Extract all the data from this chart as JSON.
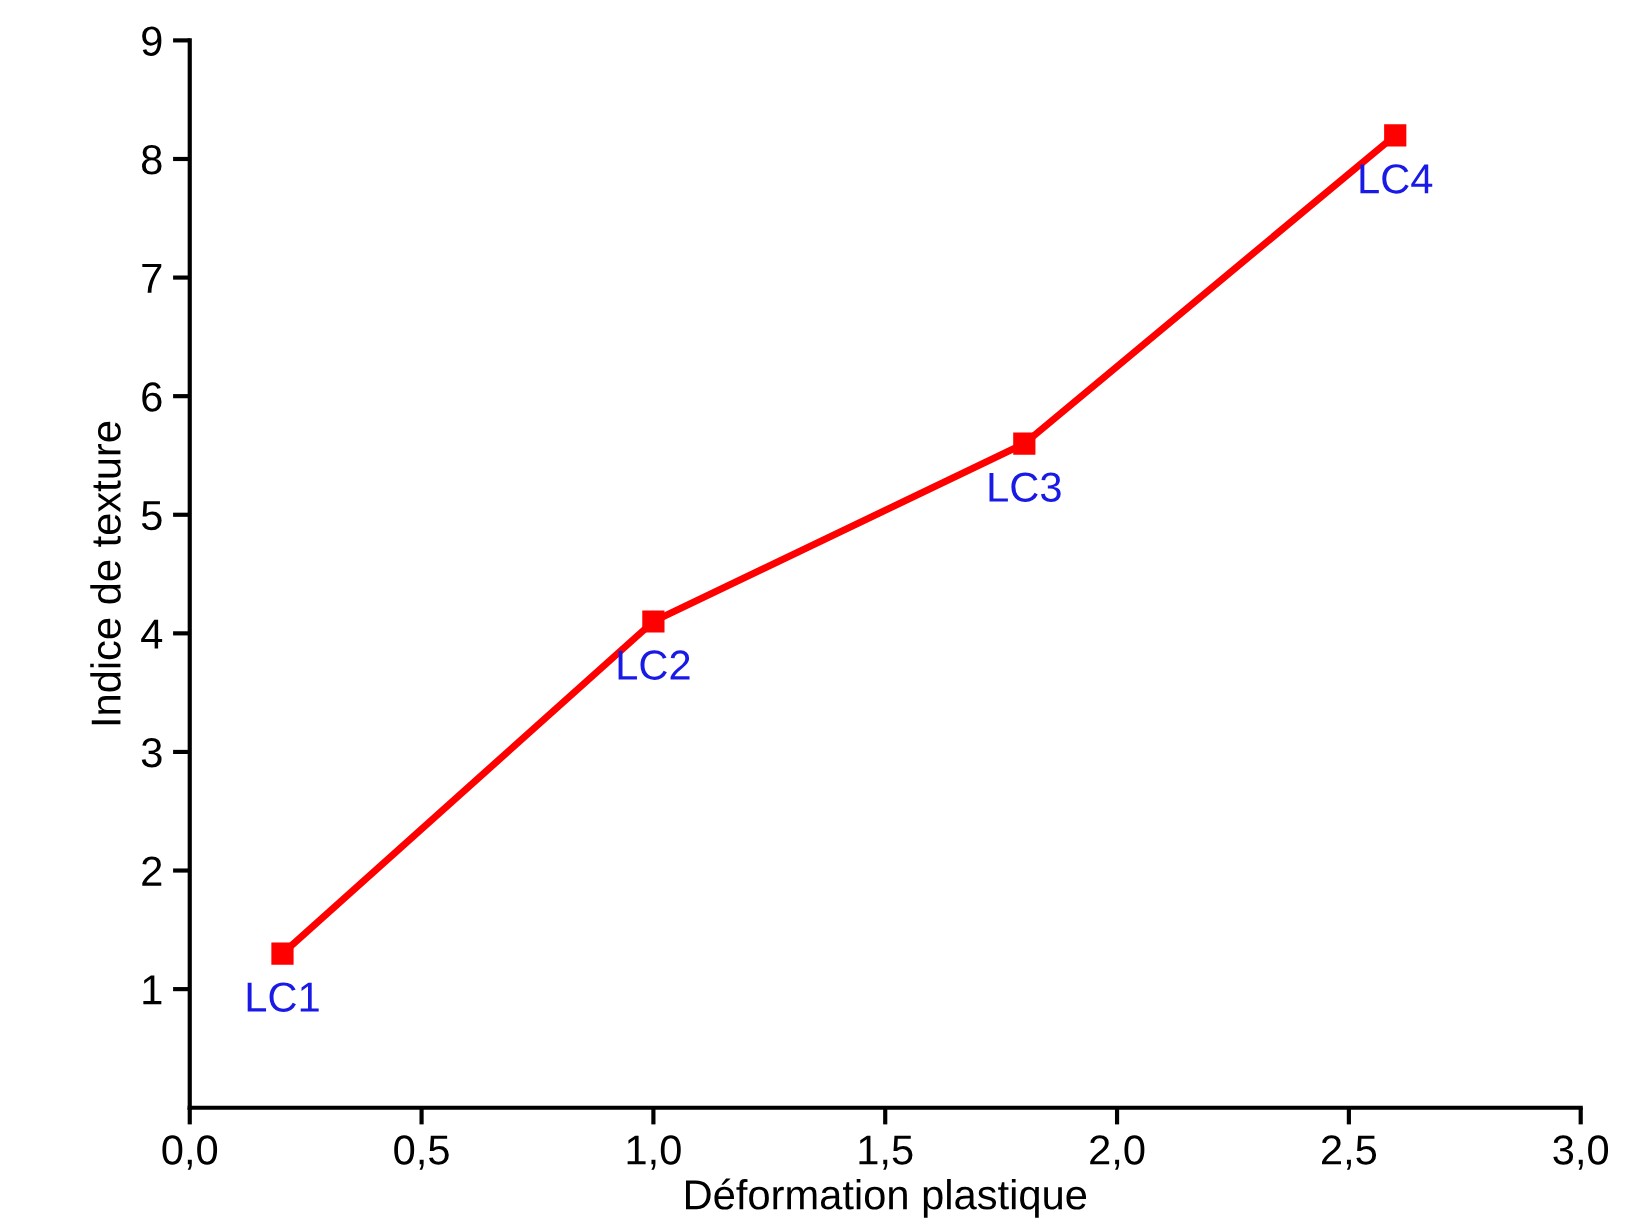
{
  "chart_data": {
    "type": "line",
    "xlabel": "Déformation plastique",
    "ylabel": "Indice de texture",
    "x": [
      0.2,
      1.0,
      1.8,
      2.6
    ],
    "series": [
      {
        "color": "#ff0000",
        "values": [
          1.3,
          4.1,
          5.6,
          8.2
        ]
      }
    ],
    "marker": "square",
    "line_style": "solid",
    "xlim": [
      0,
      3
    ],
    "ylim": [
      0,
      9
    ],
    "xticks": [
      {
        "value": 0,
        "label": "0,0"
      },
      {
        "value": 0.5,
        "label": "0,5"
      },
      {
        "value": 1,
        "label": "1,0"
      },
      {
        "value": 1.5,
        "label": "1,5"
      },
      {
        "value": 2,
        "label": "2,0"
      },
      {
        "value": 2.5,
        "label": "2,5"
      },
      {
        "value": 3,
        "label": "3,0"
      }
    ],
    "yticks": [
      1,
      2,
      3,
      4,
      5,
      6,
      7,
      8,
      9
    ],
    "annotations": [
      {
        "text": "LC1",
        "x": 0.2,
        "y": 1.3
      },
      {
        "text": "LC2",
        "x": 1.0,
        "y": 4.1
      },
      {
        "text": "LC3",
        "x": 1.8,
        "y": 5.6
      },
      {
        "text": "LC4",
        "x": 2.6,
        "y": 8.2
      }
    ]
  }
}
